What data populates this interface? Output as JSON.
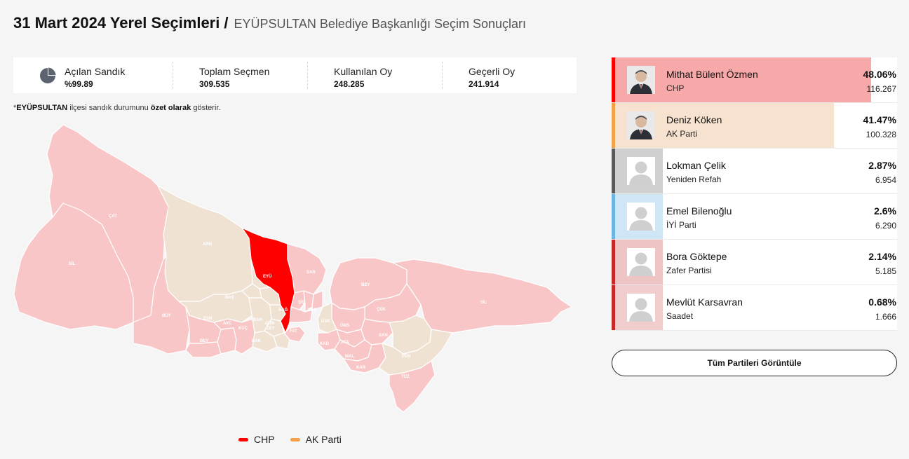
{
  "header": {
    "title": "31 Mart 2024 Yerel Seçimleri",
    "separator": "/",
    "subtitle": "EYÜPSULTAN Belediye Başkanlığı Seçim Sonuçları"
  },
  "stats": [
    {
      "label": "Açılan Sandık",
      "value": "%99.89",
      "icon": "pie-chart-icon"
    },
    {
      "label": "Toplam Seçmen",
      "value": "309.535"
    },
    {
      "label": "Kullanılan Oy",
      "value": "248.285"
    },
    {
      "label": "Geçerli Oy",
      "value": "241.914"
    }
  ],
  "note": {
    "prefix": "*",
    "district": "EYÜPSULTAN",
    "middle": " ilçesi sandık durumunu ",
    "emphasis": "özet olarak",
    "suffix": " gösterir."
  },
  "map": {
    "districts": {
      "cat": "ÇAT",
      "sil_w": "SİL",
      "arn": "ARN",
      "eyu": "EYÜ",
      "sar": "SAR",
      "bey_e": "BEY",
      "sil_e": "SİL",
      "cek": "ÇEK",
      "buy": "BÜY",
      "bas": "BAŞ",
      "kag": "KAĞ",
      "sis": "ŞİŞ",
      "bes": "BEŞ",
      "esn": "ESN",
      "avc": "AVC",
      "kuc": "KÜÇ",
      "bey_w": "BEY",
      "bak": "BAK",
      "zey": "ZEY",
      "fat": "FAT",
      "bah": "BAH",
      "gun": "GÜN",
      "ums": "ÜMS",
      "usk": "ÜSK",
      "kad": "KAD",
      "ata": "ATA",
      "san": "SAN",
      "mal": "MAL",
      "kar": "KAR",
      "pen": "PEN",
      "tuz": "TUZ"
    },
    "colors": {
      "chp_strong": "#ff0000",
      "chp_light": "#f8c6c6",
      "akp_light": "#f0e2d3",
      "border": "#ffffff"
    }
  },
  "legend": [
    {
      "label": "CHP",
      "color": "#ff0000"
    },
    {
      "label": "AK Parti",
      "color": "#f3a249"
    }
  ],
  "candidates": [
    {
      "name": "Mithat Bülent Özmen",
      "party": "CHP",
      "pct": "48.06%",
      "share": 48.06,
      "votes": "116.267",
      "color": "#ff0000",
      "bar_color": "#f7a8a8",
      "photo": "photo"
    },
    {
      "name": "Deniz Köken",
      "party": "AK Parti",
      "pct": "41.47%",
      "share": 41.47,
      "votes": "100.328",
      "color": "#f3a249",
      "bar_color": "#f6e2cf",
      "photo": "photo"
    },
    {
      "name": "Lokman Çelik",
      "party": "Yeniden Refah",
      "pct": "2.87%",
      "share": 2.87,
      "votes": "6.954",
      "color": "#5a5a5a",
      "bar_color": "#d0d0d0",
      "photo": "placeholder"
    },
    {
      "name": "Emel Bilenoğlu",
      "party": "İYİ Parti",
      "pct": "2.6%",
      "share": 2.6,
      "votes": "6.290",
      "color": "#6cb4e4",
      "bar_color": "#cfe6f6",
      "photo": "placeholder"
    },
    {
      "name": "Bora Göktepe",
      "party": "Zafer Partisi",
      "pct": "2.14%",
      "share": 2.14,
      "votes": "5.185",
      "color": "#c62828",
      "bar_color": "#efc4c4",
      "photo": "placeholder"
    },
    {
      "name": "Mevlüt Karsavran",
      "party": "Saadet",
      "pct": "0.68%",
      "share": 0.68,
      "votes": "1.666",
      "color": "#c62828",
      "bar_color": "#f0cccc",
      "photo": "placeholder"
    }
  ],
  "all_parties_button": "Tüm Partileri Görüntüle"
}
